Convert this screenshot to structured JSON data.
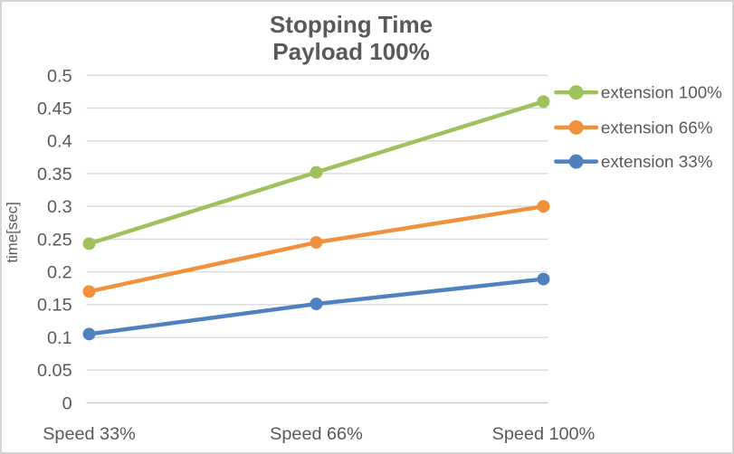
{
  "chart_data": {
    "type": "line",
    "title": "Stopping Time",
    "subtitle": "Payload 100%",
    "xlabel": "",
    "ylabel": "time[sec]",
    "categories": [
      "Speed 33%",
      "Speed 66%",
      "Speed 100%"
    ],
    "series": [
      {
        "name": "extension 100%",
        "color": "#9EC15C",
        "values": [
          0.243,
          0.352,
          0.46
        ]
      },
      {
        "name": "extension 66%",
        "color": "#F1903D",
        "values": [
          0.17,
          0.245,
          0.3
        ]
      },
      {
        "name": "extension 33%",
        "color": "#4E81BD",
        "values": [
          0.105,
          0.151,
          0.189
        ]
      }
    ],
    "ylim": [
      0,
      0.5
    ],
    "ytick_step": 0.05,
    "ytick_labels": [
      "0",
      "0.05",
      "0.1",
      "0.15",
      "0.2",
      "0.25",
      "0.3",
      "0.35",
      "0.4",
      "0.45",
      "0.5"
    ],
    "grid": true,
    "legend_position": "right",
    "text_color": "#595959",
    "gridline_color": "#D9D9D9",
    "axis_line_color": "#C9C9C9",
    "border_color": "#D4D4D4",
    "background": "#FFFFFF"
  }
}
